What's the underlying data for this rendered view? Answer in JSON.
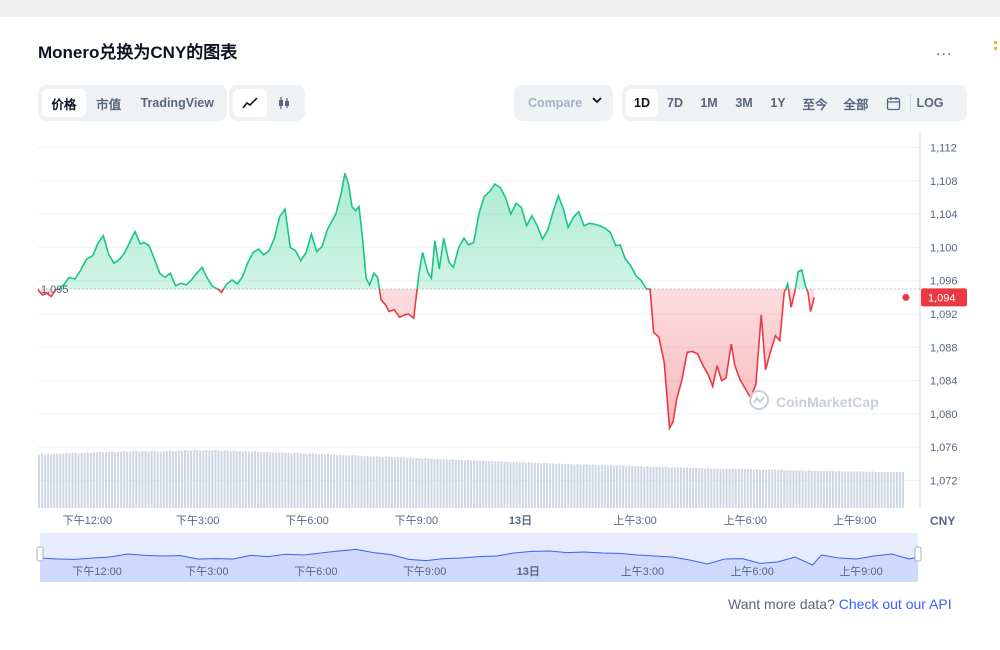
{
  "title": "Monero兑换为CNY的图表",
  "more_label": "...",
  "view_tabs": [
    "价格",
    "市值",
    "TradingView"
  ],
  "chart_type_icons": [
    "line-chart-icon",
    "candlestick-icon"
  ],
  "compare_label": "Compare",
  "ranges": [
    "1D",
    "7D",
    "1M",
    "3M",
    "1Y",
    "至今",
    "全部"
  ],
  "log_label": "LOG",
  "currency_label": "CNY",
  "watermark": "CoinMarketCap",
  "footer": {
    "text": "Want more data?",
    "link": "Check out our API"
  },
  "colors": {
    "up": "#16c784",
    "down": "#ea3943",
    "navigator": "#3861fb",
    "accent": "#0d1421"
  },
  "chart_data": {
    "type": "area",
    "reference_price": 1095,
    "reference_label": "1,095",
    "current_price": 1094,
    "current_label": "1,094",
    "ylim": [
      1070,
      1114
    ],
    "y_ticks": [
      1112,
      1108,
      1104,
      1100,
      1096,
      1092,
      1088,
      1084,
      1080,
      1076,
      1072
    ],
    "y_tick_labels": [
      "1,112",
      "1,108",
      "1,104",
      "1,100",
      "1,096",
      "1,092",
      "1,088",
      "1,084",
      "1,080",
      "1,076",
      "1,072"
    ],
    "x_ticks": [
      {
        "label": "下午12:00",
        "x": 0.056
      },
      {
        "label": "下午3:00",
        "x": 0.181
      },
      {
        "label": "下午6:00",
        "x": 0.305
      },
      {
        "label": "下午9:00",
        "x": 0.429
      },
      {
        "label": "13日",
        "x": 0.547,
        "bold": true
      },
      {
        "label": "上午3:00",
        "x": 0.677
      },
      {
        "label": "上午6:00",
        "x": 0.802
      },
      {
        "label": "上午9:00",
        "x": 0.926
      }
    ],
    "xlim": [
      0,
      1
    ],
    "series": [
      {
        "points": [
          [
            0.0,
            1094.9
          ],
          [
            0.005,
            1094.3
          ],
          [
            0.01,
            1094.5
          ],
          [
            0.015,
            1094.1
          ],
          [
            0.02,
            1094.9
          ],
          [
            0.024,
            1095.0
          ],
          [
            0.03,
            1095.6
          ],
          [
            0.035,
            1096.4
          ],
          [
            0.042,
            1096.2
          ],
          [
            0.048,
            1097.2
          ],
          [
            0.055,
            1098.6
          ],
          [
            0.062,
            1099.0
          ],
          [
            0.068,
            1100.5
          ],
          [
            0.074,
            1101.4
          ],
          [
            0.08,
            1099.2
          ],
          [
            0.086,
            1098.1
          ],
          [
            0.092,
            1098.5
          ],
          [
            0.098,
            1099.3
          ],
          [
            0.104,
            1100.6
          ],
          [
            0.11,
            1101.9
          ],
          [
            0.116,
            1100.4
          ],
          [
            0.12,
            1100.6
          ],
          [
            0.126,
            1100.2
          ],
          [
            0.132,
            1098.6
          ],
          [
            0.138,
            1096.9
          ],
          [
            0.144,
            1096.4
          ],
          [
            0.15,
            1096.9
          ],
          [
            0.156,
            1095.4
          ],
          [
            0.162,
            1095.7
          ],
          [
            0.168,
            1095.5
          ],
          [
            0.174,
            1096.1
          ],
          [
            0.18,
            1096.9
          ],
          [
            0.186,
            1097.6
          ],
          [
            0.192,
            1096.3
          ],
          [
            0.198,
            1095.3
          ],
          [
            0.204,
            1095.0
          ],
          [
            0.208,
            1094.6
          ],
          [
            0.214,
            1095.6
          ],
          [
            0.22,
            1096.1
          ],
          [
            0.226,
            1095.6
          ],
          [
            0.232,
            1096.5
          ],
          [
            0.238,
            1098.2
          ],
          [
            0.244,
            1099.4
          ],
          [
            0.25,
            1099.8
          ],
          [
            0.256,
            1099.1
          ],
          [
            0.262,
            1099.6
          ],
          [
            0.268,
            1101.1
          ],
          [
            0.274,
            1103.7
          ],
          [
            0.28,
            1104.6
          ],
          [
            0.286,
            1100.0
          ],
          [
            0.292,
            1099.6
          ],
          [
            0.298,
            1098.4
          ],
          [
            0.304,
            1099.4
          ],
          [
            0.31,
            1101.6
          ],
          [
            0.316,
            1099.5
          ],
          [
            0.322,
            1100.1
          ],
          [
            0.328,
            1102.1
          ],
          [
            0.334,
            1103.3
          ],
          [
            0.338,
            1104.1
          ],
          [
            0.344,
            1106.6
          ],
          [
            0.348,
            1108.9
          ],
          [
            0.352,
            1107.6
          ],
          [
            0.356,
            1104.9
          ],
          [
            0.36,
            1104.4
          ],
          [
            0.364,
            1104.9
          ],
          [
            0.368,
            1101.0
          ],
          [
            0.372,
            1096.3
          ],
          [
            0.376,
            1095.5
          ],
          [
            0.381,
            1096.9
          ],
          [
            0.385,
            1096.4
          ],
          [
            0.389,
            1093.7
          ],
          [
            0.394,
            1093.1
          ],
          [
            0.398,
            1092.3
          ],
          [
            0.404,
            1092.5
          ],
          [
            0.41,
            1091.6
          ],
          [
            0.416,
            1091.9
          ],
          [
            0.42,
            1092.0
          ],
          [
            0.426,
            1091.5
          ],
          [
            0.432,
            1096.9
          ],
          [
            0.436,
            1099.4
          ],
          [
            0.442,
            1097.0
          ],
          [
            0.446,
            1096.3
          ],
          [
            0.45,
            1100.8
          ],
          [
            0.455,
            1097.4
          ],
          [
            0.46,
            1101.1
          ],
          [
            0.466,
            1098.2
          ],
          [
            0.471,
            1097.6
          ],
          [
            0.477,
            1100.0
          ],
          [
            0.483,
            1101.1
          ],
          [
            0.488,
            1100.3
          ],
          [
            0.494,
            1100.6
          ],
          [
            0.5,
            1104.1
          ],
          [
            0.506,
            1106.1
          ],
          [
            0.512,
            1106.7
          ],
          [
            0.518,
            1107.6
          ],
          [
            0.524,
            1107.2
          ],
          [
            0.53,
            1106.0
          ],
          [
            0.536,
            1104.0
          ],
          [
            0.542,
            1105.3
          ],
          [
            0.548,
            1104.8
          ],
          [
            0.554,
            1102.6
          ],
          [
            0.56,
            1103.8
          ],
          [
            0.566,
            1102.6
          ],
          [
            0.572,
            1101.0
          ],
          [
            0.578,
            1102.1
          ],
          [
            0.584,
            1104.3
          ],
          [
            0.59,
            1106.2
          ],
          [
            0.596,
            1104.5
          ],
          [
            0.601,
            1102.4
          ],
          [
            0.607,
            1103.6
          ],
          [
            0.613,
            1104.3
          ],
          [
            0.619,
            1102.6
          ],
          [
            0.625,
            1102.9
          ],
          [
            0.631,
            1102.8
          ],
          [
            0.637,
            1102.6
          ],
          [
            0.643,
            1102.3
          ],
          [
            0.649,
            1101.8
          ],
          [
            0.655,
            1100.2
          ],
          [
            0.66,
            1100.3
          ],
          [
            0.666,
            1098.6
          ],
          [
            0.672,
            1097.8
          ],
          [
            0.678,
            1096.6
          ],
          [
            0.684,
            1096.0
          ],
          [
            0.69,
            1095.0
          ],
          [
            0.694,
            1095.0
          ],
          [
            0.698,
            1089.8
          ],
          [
            0.704,
            1089.2
          ],
          [
            0.71,
            1086.2
          ],
          [
            0.716,
            1078.3
          ],
          [
            0.72,
            1079.0
          ],
          [
            0.724,
            1081.7
          ],
          [
            0.73,
            1084.1
          ],
          [
            0.736,
            1087.4
          ],
          [
            0.742,
            1087.5
          ],
          [
            0.748,
            1087.2
          ],
          [
            0.754,
            1085.8
          ],
          [
            0.76,
            1084.7
          ],
          [
            0.765,
            1083.3
          ],
          [
            0.77,
            1085.8
          ],
          [
            0.775,
            1084.0
          ],
          [
            0.78,
            1084.3
          ],
          [
            0.786,
            1088.4
          ],
          [
            0.79,
            1085.8
          ],
          [
            0.796,
            1084.1
          ],
          [
            0.802,
            1083.0
          ],
          [
            0.808,
            1081.9
          ],
          [
            0.814,
            1083.6
          ],
          [
            0.82,
            1091.9
          ],
          [
            0.825,
            1085.3
          ],
          [
            0.83,
            1087.3
          ],
          [
            0.836,
            1089.4
          ],
          [
            0.841,
            1088.8
          ],
          [
            0.846,
            1094.6
          ],
          [
            0.85,
            1095.6
          ],
          [
            0.854,
            1092.8
          ],
          [
            0.858,
            1094.7
          ],
          [
            0.862,
            1097.1
          ],
          [
            0.866,
            1097.3
          ],
          [
            0.87,
            1095.4
          ],
          [
            0.873,
            1094.6
          ],
          [
            0.876,
            1092.3
          ],
          [
            0.88,
            1094.0
          ]
        ]
      }
    ],
    "volume": [
      0.92,
      0.93,
      0.92,
      0.93,
      0.92,
      0.93,
      0.94,
      0.93,
      0.94,
      0.95,
      0.94,
      0.95,
      0.95,
      0.94,
      0.95,
      0.95,
      0.96,
      0.95,
      0.96,
      0.96,
      0.97,
      0.96,
      0.96,
      0.97,
      0.97,
      0.96,
      0.97,
      0.97,
      0.98,
      0.97,
      0.97,
      0.98,
      0.98,
      0.97,
      0.98,
      0.98,
      0.97,
      0.98,
      0.98,
      0.97,
      0.97,
      0.98,
      0.98,
      0.99,
      0.98,
      0.98,
      0.99,
      0.99,
      1.0,
      0.99,
      0.99,
      1.0,
      1.0,
      0.99,
      0.99,
      1.0,
      0.99,
      0.99,
      1.0,
      0.99,
      0.98,
      0.99,
      0.99,
      0.98,
      0.99,
      0.98,
      0.98,
      0.97,
      0.98,
      0.97,
      0.97,
      0.98,
      0.97,
      0.96,
      0.97,
      0.97,
      0.96,
      0.96,
      0.95,
      0.96,
      0.96,
      0.95,
      0.95,
      0.94,
      0.95,
      0.95,
      0.94,
      0.94,
      0.93,
      0.94,
      0.94,
      0.93,
      0.93,
      0.93,
      0.92,
      0.93,
      0.92,
      0.92,
      0.91,
      0.92,
      0.91,
      0.91,
      0.9,
      0.91,
      0.91,
      0.9,
      0.9,
      0.89,
      0.9,
      0.89,
      0.89,
      0.89,
      0.88,
      0.88,
      0.89,
      0.88,
      0.88,
      0.87,
      0.88,
      0.87,
      0.87,
      0.86,
      0.87,
      0.86,
      0.86,
      0.86,
      0.85,
      0.86,
      0.85,
      0.85,
      0.84,
      0.85,
      0.84,
      0.84,
      0.84,
      0.83,
      0.84,
      0.83,
      0.83,
      0.83,
      0.82,
      0.83,
      0.82,
      0.82,
      0.82,
      0.81,
      0.82,
      0.81,
      0.81,
      0.81,
      0.8,
      0.81,
      0.8,
      0.8,
      0.8,
      0.79,
      0.8,
      0.79,
      0.79,
      0.79,
      0.78,
      0.79,
      0.78,
      0.78,
      0.78,
      0.77,
      0.78,
      0.77,
      0.77,
      0.77,
      0.76,
      0.77,
      0.76,
      0.76,
      0.76,
      0.76,
      0.75,
      0.76,
      0.75,
      0.75,
      0.75,
      0.74,
      0.75,
      0.74,
      0.74,
      0.74,
      0.74,
      0.73,
      0.74,
      0.73,
      0.73,
      0.73,
      0.73,
      0.72,
      0.73,
      0.72,
      0.72,
      0.72,
      0.72,
      0.71,
      0.72,
      0.71,
      0.71,
      0.71,
      0.71,
      0.7,
      0.71,
      0.7,
      0.7,
      0.7,
      0.7,
      0.7,
      0.69,
      0.7,
      0.69,
      0.69,
      0.69,
      0.69,
      0.69,
      0.68,
      0.69,
      0.68,
      0.68,
      0.68,
      0.68,
      0.68,
      0.68,
      0.67,
      0.68,
      0.67,
      0.67,
      0.67,
      0.67,
      0.67,
      0.67,
      0.66,
      0.67,
      0.66,
      0.66,
      0.66,
      0.66,
      0.66,
      0.66,
      0.65,
      0.66,
      0.65,
      0.65,
      0.65,
      0.65,
      0.65,
      0.65,
      0.65,
      0.64,
      0.65,
      0.64,
      0.64,
      0.64,
      0.64,
      0.64,
      0.64,
      0.64,
      0.64,
      0.63,
      0.64,
      0.63,
      0.63,
      0.63,
      0.63,
      0.63,
      0.63,
      0.63,
      0.63,
      0.63,
      0.62,
      0.63,
      0.62,
      0.62,
      0.62,
      0.62,
      0.62,
      0.62,
      0.62,
      0.62,
      0.62,
      0.62
    ],
    "navigator_points": [
      [
        0.0,
        0.55
      ],
      [
        0.02,
        0.6
      ],
      [
        0.04,
        0.62
      ],
      [
        0.06,
        0.55
      ],
      [
        0.08,
        0.5
      ],
      [
        0.1,
        0.35
      ],
      [
        0.12,
        0.42
      ],
      [
        0.14,
        0.45
      ],
      [
        0.16,
        0.43
      ],
      [
        0.18,
        0.6
      ],
      [
        0.2,
        0.58
      ],
      [
        0.22,
        0.6
      ],
      [
        0.24,
        0.42
      ],
      [
        0.26,
        0.48
      ],
      [
        0.28,
        0.36
      ],
      [
        0.3,
        0.4
      ],
      [
        0.32,
        0.3
      ],
      [
        0.34,
        0.2
      ],
      [
        0.36,
        0.12
      ],
      [
        0.38,
        0.28
      ],
      [
        0.4,
        0.38
      ],
      [
        0.42,
        0.62
      ],
      [
        0.44,
        0.68
      ],
      [
        0.46,
        0.58
      ],
      [
        0.48,
        0.55
      ],
      [
        0.5,
        0.48
      ],
      [
        0.52,
        0.45
      ],
      [
        0.54,
        0.3
      ],
      [
        0.56,
        0.22
      ],
      [
        0.58,
        0.2
      ],
      [
        0.6,
        0.28
      ],
      [
        0.62,
        0.25
      ],
      [
        0.64,
        0.3
      ],
      [
        0.66,
        0.32
      ],
      [
        0.68,
        0.4
      ],
      [
        0.7,
        0.45
      ],
      [
        0.72,
        0.5
      ],
      [
        0.74,
        0.65
      ],
      [
        0.76,
        0.85
      ],
      [
        0.78,
        0.6
      ],
      [
        0.8,
        0.58
      ],
      [
        0.82,
        0.82
      ],
      [
        0.84,
        0.75
      ],
      [
        0.86,
        0.5
      ],
      [
        0.88,
        0.9
      ],
      [
        0.89,
        0.4
      ],
      [
        0.91,
        0.55
      ],
      [
        0.93,
        0.6
      ],
      [
        0.95,
        0.45
      ],
      [
        0.97,
        0.35
      ],
      [
        0.99,
        0.6
      ],
      [
        1.0,
        0.5
      ]
    ]
  }
}
